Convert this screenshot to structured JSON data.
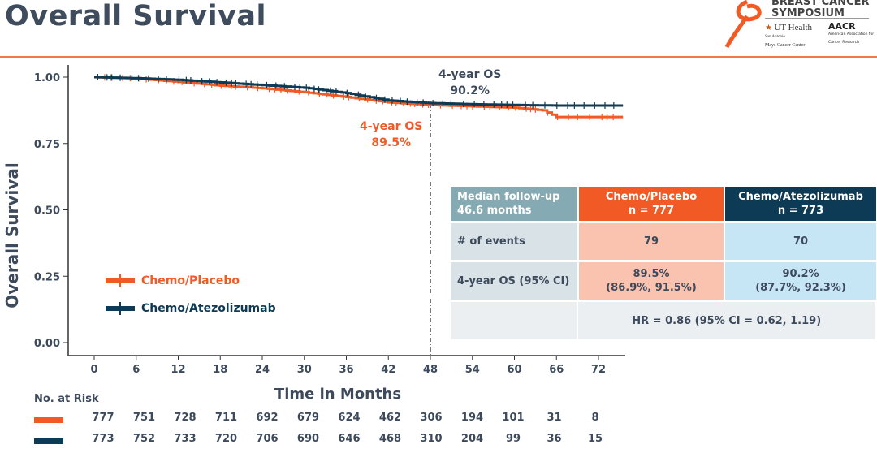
{
  "title": "Overall Survival",
  "logo": {
    "line1": "BREAST CANCER",
    "line2": "SYMPOSIUM",
    "ut": "UT Health",
    "ut_sub1": "San Antonio",
    "ut_sub2": "Mays Cancer Center",
    "aacr": "AACR",
    "aacr_sub": "American Association for Cancer Research"
  },
  "colors": {
    "placebo": "#f15a24",
    "atezolizumab": "#0d3a55",
    "title": "#3f4c5e",
    "rule": "#f0784a"
  },
  "chart_data": {
    "type": "line",
    "subtype": "kaplan-meier",
    "xlabel": "Time in Months",
    "ylabel": "Overall Survival",
    "xlim": [
      0,
      76
    ],
    "ylim": [
      0,
      1
    ],
    "xticks": [
      0,
      6,
      12,
      18,
      24,
      30,
      36,
      42,
      48,
      54,
      60,
      66,
      72
    ],
    "yticks": [
      "0.00",
      "0.25",
      "0.50",
      "0.75",
      "1.00"
    ],
    "grid": false,
    "legend_placement": "left",
    "reference_line_x": 48,
    "series": [
      {
        "name": "Chemo/Placebo",
        "color": "#f15a24",
        "x": [
          0,
          6,
          12,
          18,
          24,
          30,
          36,
          42,
          48,
          54,
          60,
          64,
          66,
          75.5
        ],
        "y": [
          1.0,
          0.995,
          0.982,
          0.968,
          0.958,
          0.943,
          0.925,
          0.905,
          0.895,
          0.89,
          0.885,
          0.875,
          0.85,
          0.85
        ]
      },
      {
        "name": "Chemo/Atezolizumab",
        "color": "#0d3a55",
        "x": [
          0,
          6,
          12,
          18,
          24,
          30,
          36,
          42,
          48,
          54,
          60,
          66,
          75.5
        ],
        "y": [
          1.0,
          0.996,
          0.99,
          0.98,
          0.97,
          0.96,
          0.94,
          0.912,
          0.902,
          0.898,
          0.895,
          0.893,
          0.893
        ]
      }
    ],
    "annotations": [
      {
        "label": "4-year OS",
        "value": "90.2%",
        "series": "Chemo/Atezolizumab"
      },
      {
        "label": "4-year OS",
        "value": "89.5%",
        "series": "Chemo/Placebo"
      }
    ]
  },
  "table": {
    "header": {
      "c1": "Median follow-up 46.6 months",
      "c2a": "Chemo/Placebo",
      "c2b": "n = 777",
      "c3a": "Chemo/Atezolizumab",
      "c3b": "n = 773"
    },
    "events": {
      "label": "# of events",
      "placebo": "79",
      "atezo": "70"
    },
    "os": {
      "label": "4-year OS (95% CI)",
      "placebo": "89.5%",
      "placebo_ci": "(86.9%, 91.5%)",
      "atezo": "90.2%",
      "atezo_ci": "(87.7%, 92.3%)"
    },
    "hr": "HR = 0.86 (95% CI = 0.62, 1.19)"
  },
  "risk": {
    "label": "No. at Risk",
    "placebo": [
      "777",
      "751",
      "728",
      "711",
      "692",
      "679",
      "624",
      "462",
      "306",
      "194",
      "101",
      "31",
      "8"
    ],
    "atezo": [
      "773",
      "752",
      "733",
      "720",
      "706",
      "690",
      "646",
      "468",
      "310",
      "204",
      "99",
      "36",
      "15"
    ]
  }
}
